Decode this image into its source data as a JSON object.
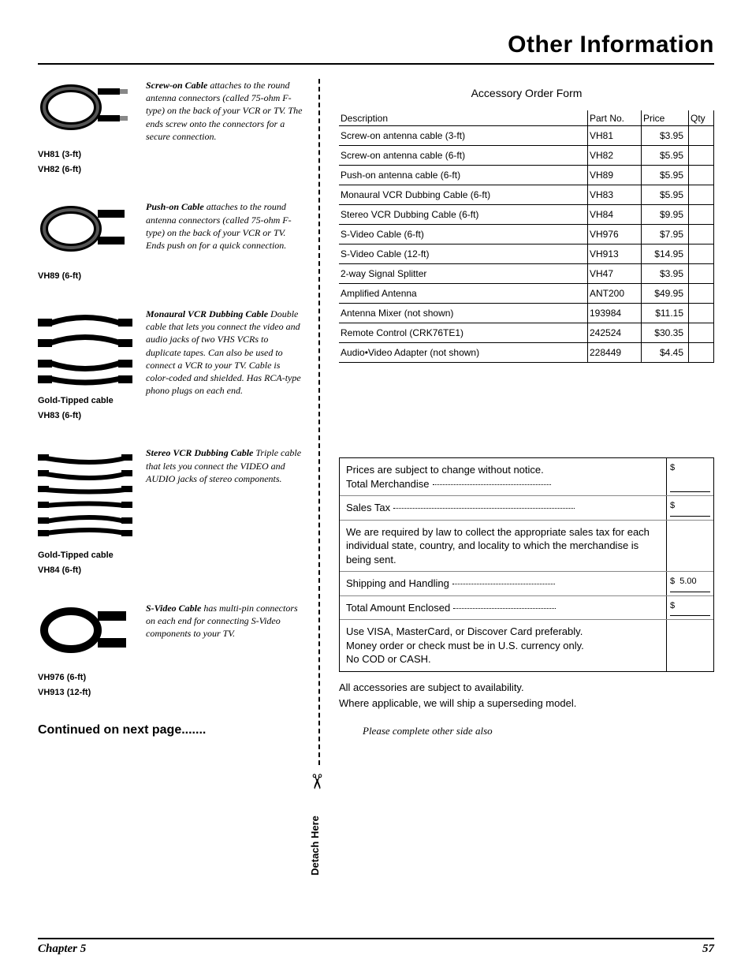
{
  "page": {
    "title": "Other Information",
    "continued": "Continued on next page.......",
    "detach": "Detach Here",
    "chapter": "Chapter 5",
    "pagenum": "57"
  },
  "products": [
    {
      "labels": [
        "VH81 (3-ft)",
        "VH82 (6-ft)"
      ],
      "lead": "Screw-on Cable",
      "desc": " attaches to the round antenna connectors (called 75-ohm F-type) on the back of your VCR or TV. The ends screw onto the connectors for a secure connection."
    },
    {
      "labels": [
        "VH89 (6-ft)"
      ],
      "lead": "Push-on Cable",
      "desc": " attaches to the round antenna connectors (called 75-ohm F-type) on the back of your VCR or TV. Ends push on for a quick connection."
    },
    {
      "labels": [
        "Gold-Tipped cable",
        "VH83 (6-ft)"
      ],
      "lead": "Monaural VCR Dubbing Cable",
      "desc": " Double cable that lets you connect the video and audio jacks of two VHS VCRs to duplicate tapes. Can also be used to connect a VCR to your TV. Cable is color-coded and shielded. Has RCA-type phono plugs on each end."
    },
    {
      "labels": [
        "Gold-Tipped cable",
        "VH84 (6-ft)"
      ],
      "lead": "Stereo VCR Dubbing Cable",
      "desc": " Triple cable that lets you connect the VIDEO and AUDIO jacks of stereo components."
    },
    {
      "labels": [
        "VH976 (6-ft)",
        "VH913 (12-ft)"
      ],
      "lead": "S-Video Cable",
      "desc": " has multi-pin connectors on each end for connecting S-Video components to your TV."
    }
  ],
  "order": {
    "title": "Accessory Order Form",
    "headers": [
      "Description",
      "Part No.",
      "Price",
      "Qty"
    ],
    "rows": [
      [
        "Screw-on antenna cable (3-ft)",
        "VH81",
        "$3.95",
        ""
      ],
      [
        "Screw-on antenna cable (6-ft)",
        "VH82",
        "$5.95",
        ""
      ],
      [
        "Push-on antenna cable (6-ft)",
        "VH89",
        "$5.95",
        ""
      ],
      [
        "Monaural VCR Dubbing Cable (6-ft)",
        "VH83",
        "$5.95",
        ""
      ],
      [
        "Stereo VCR Dubbing Cable (6-ft)",
        "VH84",
        "$9.95",
        ""
      ],
      [
        "S-Video Cable (6-ft)",
        "VH976",
        "$7.95",
        ""
      ],
      [
        "S-Video Cable (12-ft)",
        "VH913",
        "$14.95",
        ""
      ],
      [
        "2-way Signal Splitter",
        "VH47",
        "$3.95",
        ""
      ],
      [
        "Amplified Antenna",
        "ANT200",
        "$49.95",
        ""
      ],
      [
        "Antenna Mixer (not shown)",
        "193984",
        "$11.15",
        ""
      ],
      [
        "Remote Control (CRK76TE1)",
        "242524",
        "$30.35",
        ""
      ],
      [
        "Audio•Video Adapter (not shown)",
        "228449",
        "$4.45",
        ""
      ]
    ]
  },
  "totals": {
    "notice": "Prices are subject to change without notice.",
    "merchandise": "Total Merchandise",
    "salestax": "Sales Tax",
    "taxnote": "We are required by law to collect the appropriate sales tax for each individual state, country, and locality to which the merchandise is being sent.",
    "shipping_label": "Shipping and Handling",
    "shipping_amount": "5.00",
    "total_label": "Total Amount Enclosed",
    "visa": "Use VISA, MasterCard, or Discover Card preferably.",
    "money": "Money order or check must be in U.S. currency only.",
    "cod": "No COD or CASH."
  },
  "notes": {
    "avail": "All accessories are subject to availability.",
    "supersede": "Where applicable, we will ship a superseding model.",
    "please": "Please complete other side also"
  }
}
